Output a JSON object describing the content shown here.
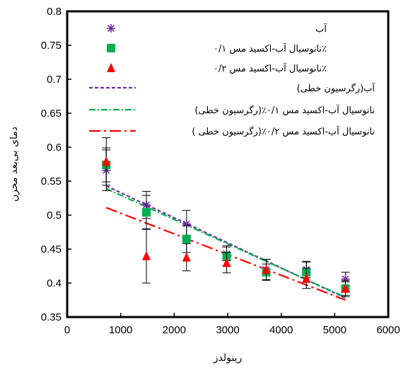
{
  "chart_data": {
    "type": "scatter",
    "xlabel": "رینولدز",
    "ylabel": "دمای بی‌بعد مخزن",
    "xlim": [
      0,
      6000
    ],
    "ylim": [
      0.35,
      0.8
    ],
    "xticks": [
      "0",
      "1000",
      "2000",
      "3000",
      "4000",
      "5000",
      "6000"
    ],
    "yticks": [
      "0.35",
      "0.4",
      "0.45",
      "0.5",
      "0.55",
      "0.6",
      "0.65",
      "0.7",
      "0.75",
      "0.8"
    ],
    "grid": false,
    "legend_position": "top-right",
    "series": [
      {
        "name": "آب",
        "marker": "asterisk",
        "color": "#7030a0",
        "x": [
          730,
          1480,
          2230,
          2980,
          3720,
          4470,
          5200
        ],
        "y": [
          0.566,
          0.515,
          0.487,
          0.443,
          0.42,
          0.42,
          0.406
        ],
        "err": [
          0.03,
          0.02,
          0.02,
          0.01,
          0.015,
          0.012,
          0.01
        ]
      },
      {
        "name": "نانوسیال آب-اکسید مس ۰/۱٪",
        "marker": "square",
        "color": "#00b050",
        "x": [
          730,
          1480,
          2230,
          2980,
          3720,
          4470,
          5200
        ],
        "y": [
          0.574,
          0.504,
          0.465,
          0.44,
          0.416,
          0.416,
          0.392
        ],
        "err": [
          0.025,
          0.025,
          0.02,
          0.015,
          0.012,
          0.015,
          0.01
        ]
      },
      {
        "name": "نانوسیال آب-اکسید مس ۰/۲٪",
        "marker": "triangle",
        "color": "#ff0000",
        "x": [
          730,
          1480,
          2230,
          2980,
          3720,
          4470,
          5200
        ],
        "y": [
          0.579,
          0.44,
          0.438,
          0.43,
          0.42,
          0.407,
          0.392
        ],
        "err": [
          0.035,
          0.04,
          0.02,
          0.015,
          0.015,
          0.015,
          0.012
        ]
      }
    ],
    "regressions": [
      {
        "name": "آب(رگرسیون خطی)",
        "color": "#7030a0",
        "dash": "5,3",
        "x": [
          730,
          5200
        ],
        "y": [
          0.543,
          0.378
        ]
      },
      {
        "name": "نانوسیال آب-اکسید مس ۰/۱٪(رگرسیون خطی)",
        "color": "#00b050",
        "dash": "9,3,2,3",
        "x": [
          730,
          5200
        ],
        "y": [
          0.539,
          0.379
        ]
      },
      {
        "name": "نانوسیال آب-اکسید مس ۰/۲٪(رگرسیون خطی )",
        "color": "#ff0000",
        "dash": "16,5,3,5",
        "x": [
          730,
          5200
        ],
        "y": [
          0.511,
          0.375
        ]
      }
    ]
  }
}
